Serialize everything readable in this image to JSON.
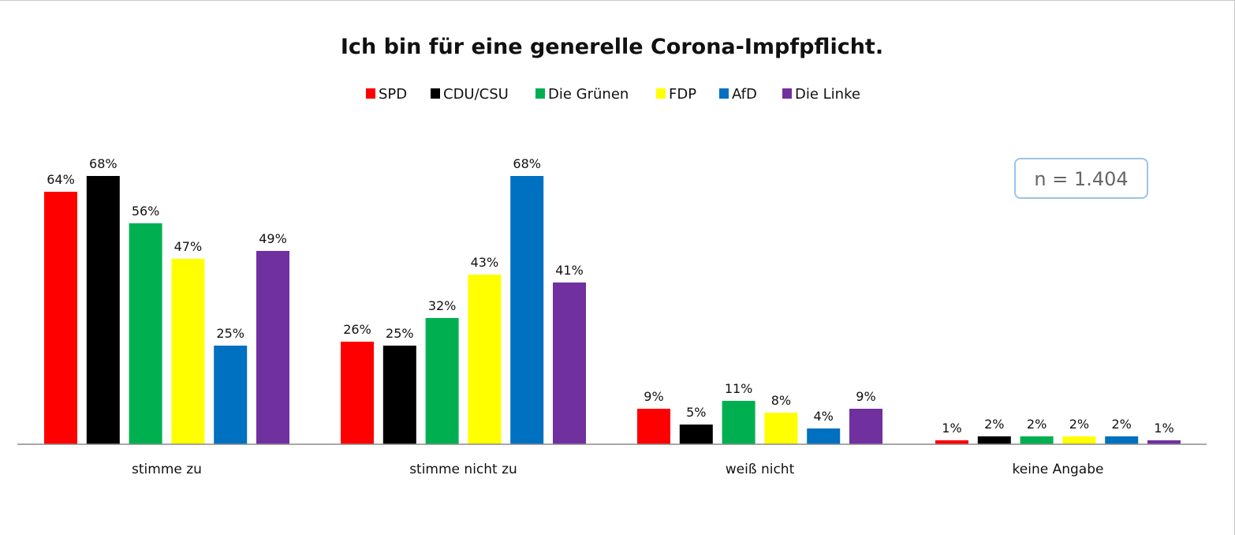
{
  "chart_data": {
    "type": "bar",
    "title": "Ich bin für eine generelle Corona-Impfpflicht.",
    "categories": [
      "stimme zu",
      "stimme nicht zu",
      "weiß nicht",
      "keine Angabe"
    ],
    "series": [
      {
        "name": "SPD",
        "color": "#ff0000",
        "values": [
          64,
          26,
          9,
          1
        ],
        "labels": [
          "64%",
          "26%",
          "9%",
          "1%"
        ]
      },
      {
        "name": "CDU/CSU",
        "color": "#000000",
        "values": [
          68,
          25,
          5,
          2
        ],
        "labels": [
          "68%",
          "25%",
          "5%",
          "2%"
        ]
      },
      {
        "name": "Die Grünen",
        "color": "#00b050",
        "values": [
          56,
          32,
          11,
          2
        ],
        "labels": [
          "56%",
          "32%",
          "11%",
          "2%"
        ]
      },
      {
        "name": "FDP",
        "color": "#ffff00",
        "values": [
          47,
          43,
          8,
          2
        ],
        "labels": [
          "47%",
          "43%",
          "8%",
          "2%"
        ]
      },
      {
        "name": "AfD",
        "color": "#0070c0",
        "values": [
          25,
          68,
          4,
          2
        ],
        "labels": [
          "25%",
          "68%",
          "4%",
          "2%"
        ]
      },
      {
        "name": "Die Linke",
        "color": "#7030a0",
        "values": [
          49,
          41,
          9,
          1
        ],
        "labels": [
          "49%",
          "41%",
          "9%",
          "1%"
        ]
      }
    ],
    "ylim": [
      0,
      70
    ],
    "legend": "top-center",
    "grid": false,
    "annotation": "n = 1.404",
    "xlabel": "",
    "ylabel": ""
  }
}
